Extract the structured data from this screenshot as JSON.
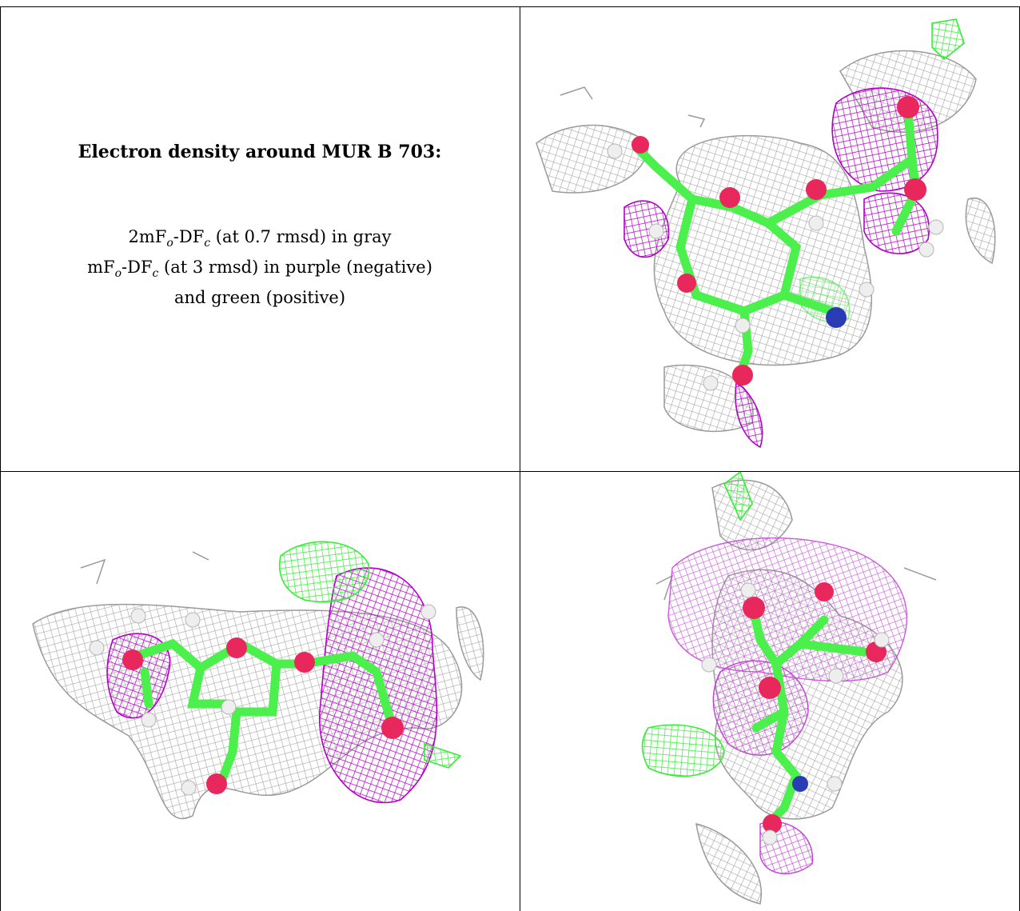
{
  "caption": {
    "title": "Electron density around MUR B 703:",
    "line1_parts": [
      "2mF",
      "o",
      "-DF",
      "c",
      " (at 0.7 rmsd) in gray"
    ],
    "line2_parts": [
      "mF",
      "o",
      "-DF",
      "c",
      " (at 3 rmsd) in purple (negative)"
    ],
    "line3": "and green (positive)"
  },
  "colors": {
    "gray_mesh": "#a9a9a9",
    "purple_mesh": "#b300c8",
    "green_mesh": "#33ee33",
    "carbon": "#4cf04c",
    "oxygen": "#e8285c",
    "nitrogen": "#2a3cb4",
    "hydrogen": "#e6e6e6"
  },
  "panels": [
    {
      "name": "view-top-right"
    },
    {
      "name": "view-bottom-left"
    },
    {
      "name": "view-bottom-right"
    }
  ]
}
